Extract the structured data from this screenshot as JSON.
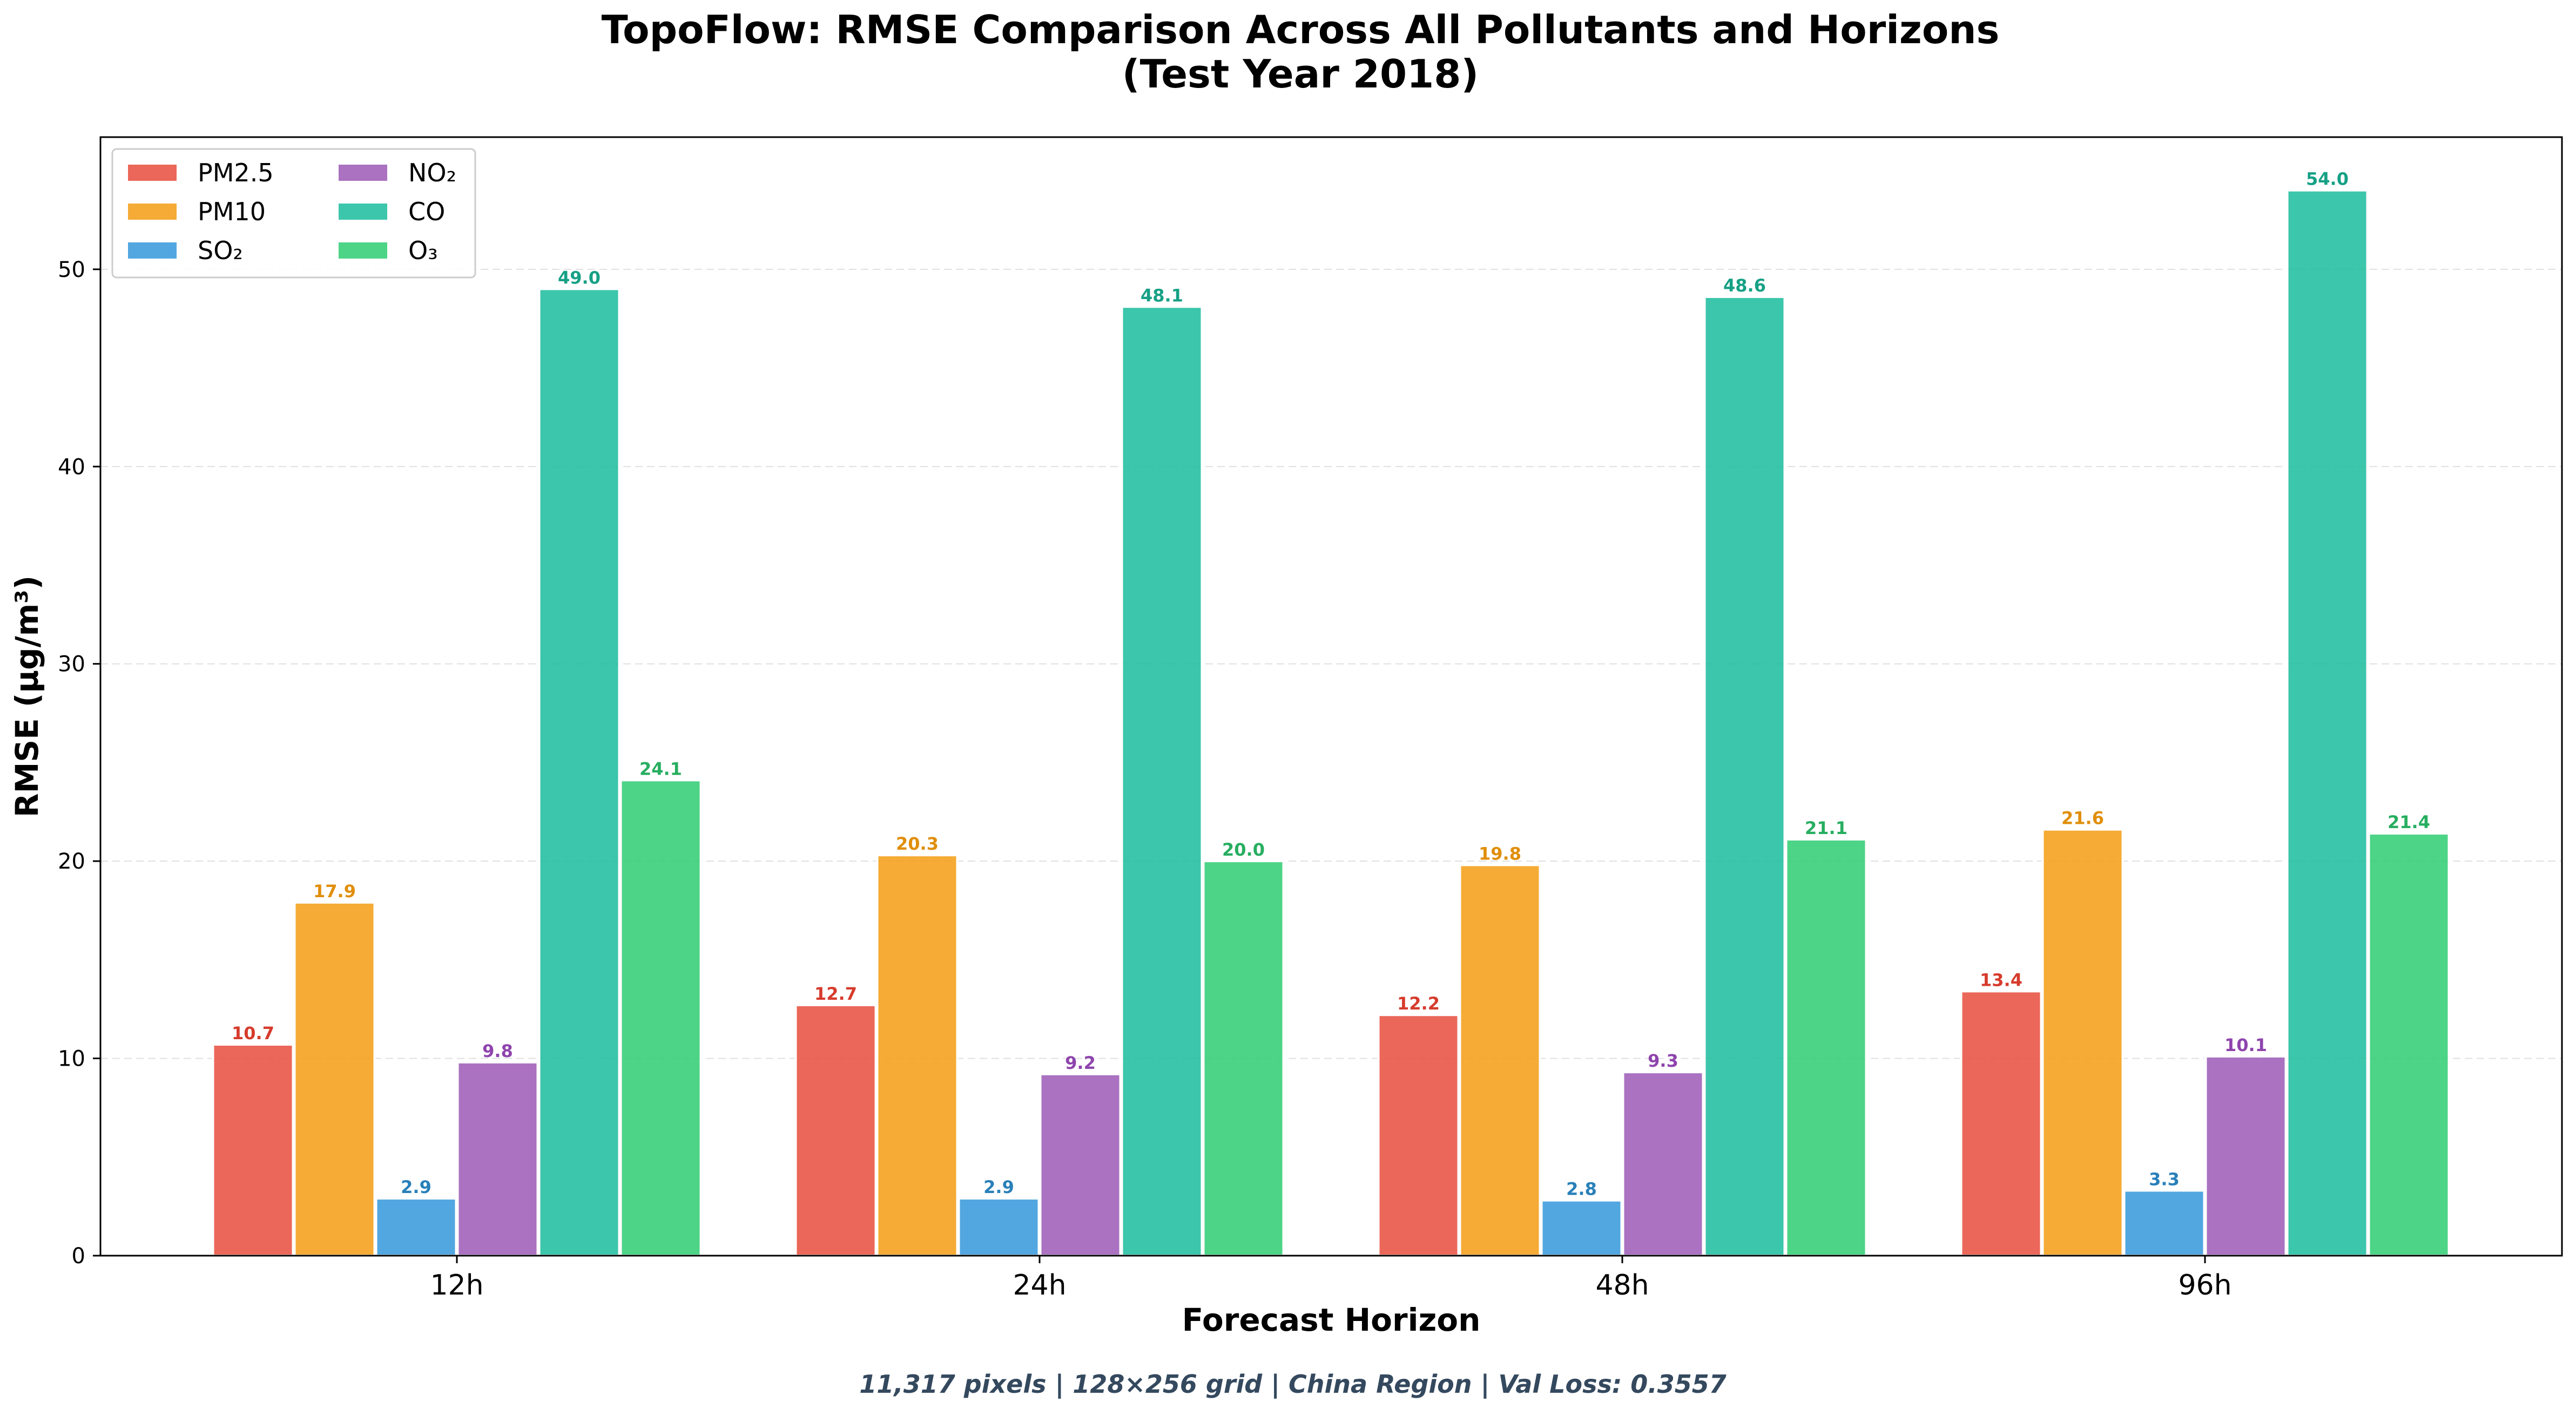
{
  "chart_data": {
    "type": "bar",
    "title_line1": "TopoFlow: RMSE Comparison Across All Pollutants and Horizons",
    "title_line2": "(Test Year 2018)",
    "xlabel": "Forecast Horizon",
    "ylabel": "RMSE (µg/m³)",
    "footnote": "11,317 pixels | 128×256 grid | China Region | Val Loss: 0.3557",
    "categories": [
      "12h",
      "24h",
      "48h",
      "96h"
    ],
    "ylim": [
      0,
      56.7
    ],
    "yticks": [
      0,
      10,
      20,
      30,
      40,
      50
    ],
    "grid": "y-dashed",
    "legend_position": "top-left",
    "series": [
      {
        "name": "PM2.5",
        "color": "#e74c3c",
        "label_color": "#d63b2c",
        "values": [
          10.7,
          12.7,
          12.2,
          13.4
        ]
      },
      {
        "name": "PM10",
        "color": "#f39c12",
        "label_color": "#e08e0b",
        "values": [
          17.9,
          20.3,
          19.8,
          21.6
        ]
      },
      {
        "name": "SO₂",
        "color": "#3498db",
        "label_color": "#2980b9",
        "values": [
          2.9,
          2.9,
          2.8,
          3.3
        ]
      },
      {
        "name": "NO₂",
        "color": "#9b59b6",
        "label_color": "#8e44ad",
        "values": [
          9.8,
          9.2,
          9.3,
          10.1
        ]
      },
      {
        "name": "CO",
        "color": "#1abc9c",
        "label_color": "#16a085",
        "values": [
          49.0,
          48.1,
          48.6,
          54.0
        ]
      },
      {
        "name": "O₃",
        "color": "#2ecc71",
        "label_color": "#27ae60",
        "values": [
          24.1,
          20.0,
          21.1,
          21.4
        ]
      }
    ],
    "label_decimals": 1,
    "footnote_color": "#34495e"
  }
}
